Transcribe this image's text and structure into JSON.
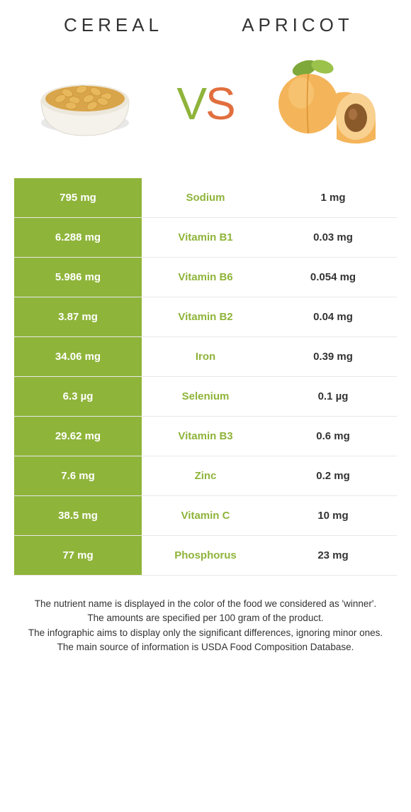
{
  "header": {
    "left_title": "Cereal",
    "right_title": "Apricot",
    "vs_v": "V",
    "vs_s": "S"
  },
  "colors": {
    "green": "#8fb43a",
    "orange": "#e16f3e",
    "row_border": "#e8e8e8",
    "text": "#333333",
    "white": "#ffffff"
  },
  "comparison": {
    "type": "table",
    "rows": [
      {
        "left": "795 mg",
        "label": "Sodium",
        "right": "1 mg",
        "winner": "left"
      },
      {
        "left": "6.288 mg",
        "label": "Vitamin B1",
        "right": "0.03 mg",
        "winner": "left"
      },
      {
        "left": "5.986 mg",
        "label": "Vitamin B6",
        "right": "0.054 mg",
        "winner": "left"
      },
      {
        "left": "3.87 mg",
        "label": "Vitamin B2",
        "right": "0.04 mg",
        "winner": "left"
      },
      {
        "left": "34.06 mg",
        "label": "Iron",
        "right": "0.39 mg",
        "winner": "left"
      },
      {
        "left": "6.3 µg",
        "label": "Selenium",
        "right": "0.1 µg",
        "winner": "left"
      },
      {
        "left": "29.62 mg",
        "label": "Vitamin B3",
        "right": "0.6 mg",
        "winner": "left"
      },
      {
        "left": "7.6 mg",
        "label": "Zinc",
        "right": "0.2 mg",
        "winner": "left"
      },
      {
        "left": "38.5 mg",
        "label": "Vitamin C",
        "right": "10 mg",
        "winner": "left"
      },
      {
        "left": "77 mg",
        "label": "Phosphorus",
        "right": "23 mg",
        "winner": "left"
      }
    ]
  },
  "footer": {
    "line1": "The nutrient name is displayed in the color of the food we considered as 'winner'.",
    "line2": "The amounts are specified per 100 gram of the product.",
    "line3": "The infographic aims to display only the significant differences, ignoring minor ones.",
    "line4": "The main source of information is USDA Food Composition Database."
  }
}
